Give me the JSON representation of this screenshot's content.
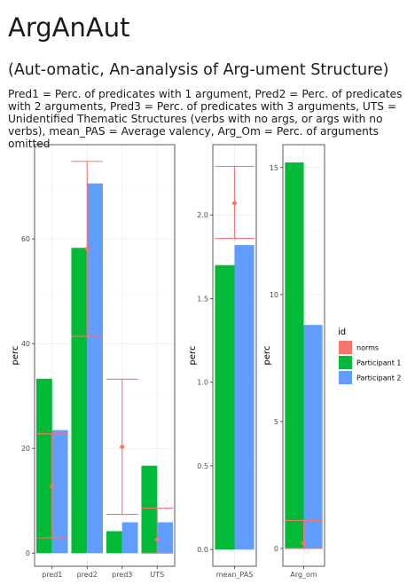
{
  "header": {
    "title": "ArgAnAut",
    "subtitle": "(Aut-omatic, An-analysis of Arg-ument Structure)",
    "description": "Pred1 = Perc. of predicates with 1 argument, Pred2 = Perc. of predicates with 2 arguments, Pred3 = Perc. of predicates with 3 arguments, UTS = Unidentified Thematic Structures (verbs with no args, or args with no verbs), mean_PAS = Average valency, Arg_Om = Perc. of arguments omitted"
  },
  "colors": {
    "norms": "#F8766D",
    "participant1": "#00BA38",
    "participant2": "#619CFF",
    "panel_border": "#333333",
    "grid": "#ebebeb"
  },
  "legend": {
    "title": "id",
    "position": "right",
    "items": [
      {
        "label": "norms",
        "color": "#F8766D"
      },
      {
        "label": "Participant 1",
        "color": "#00BA38"
      },
      {
        "label": "Participant 2",
        "color": "#619CFF"
      }
    ]
  },
  "chart_data": [
    {
      "type": "bar",
      "ylabel": "perc",
      "ylim": [
        -2.5,
        78
      ],
      "yticks": [
        0,
        20,
        40,
        60
      ],
      "grid": true,
      "categories": [
        "pred1",
        "pred2",
        "pred3",
        "UTS"
      ],
      "series": [
        {
          "name": "Participant 1",
          "values": [
            33.3,
            58.3,
            4.2,
            16.7
          ]
        },
        {
          "name": "Participant 2",
          "values": [
            23.5,
            70.6,
            5.9,
            5.9
          ]
        }
      ],
      "norms": {
        "mean": [
          12.8,
          58.1,
          20.3,
          2.6
        ],
        "low": [
          2.9,
          41.4,
          7.4,
          0
        ],
        "high": [
          22.8,
          74.8,
          33.2,
          8.6
        ]
      }
    },
    {
      "type": "bar",
      "ylabel": "perc",
      "ylim": [
        -0.1,
        2.42
      ],
      "yticks": [
        0.0,
        0.5,
        1.0,
        1.5,
        2.0
      ],
      "tick_labels": [
        "0.0",
        "0.5",
        "1.0",
        "1.5",
        "2.0"
      ],
      "grid": true,
      "categories": [
        "mean_PAS"
      ],
      "series": [
        {
          "name": "Participant 1",
          "values": [
            1.7
          ]
        },
        {
          "name": "Participant 2",
          "values": [
            1.82
          ]
        }
      ],
      "norms": {
        "mean": [
          2.07
        ],
        "low": [
          1.86
        ],
        "high": [
          2.29
        ]
      }
    },
    {
      "type": "bar",
      "ylabel": "perc",
      "ylim": [
        -0.7,
        15.9
      ],
      "yticks": [
        0,
        5,
        10,
        15
      ],
      "grid": true,
      "categories": [
        "Arg_om"
      ],
      "series": [
        {
          "name": "Participant 1",
          "values": [
            15.2
          ]
        },
        {
          "name": "Participant 2",
          "values": [
            8.8
          ]
        }
      ],
      "norms": {
        "mean": [
          0.2
        ],
        "low": [
          0
        ],
        "high": [
          1.1
        ]
      }
    }
  ]
}
